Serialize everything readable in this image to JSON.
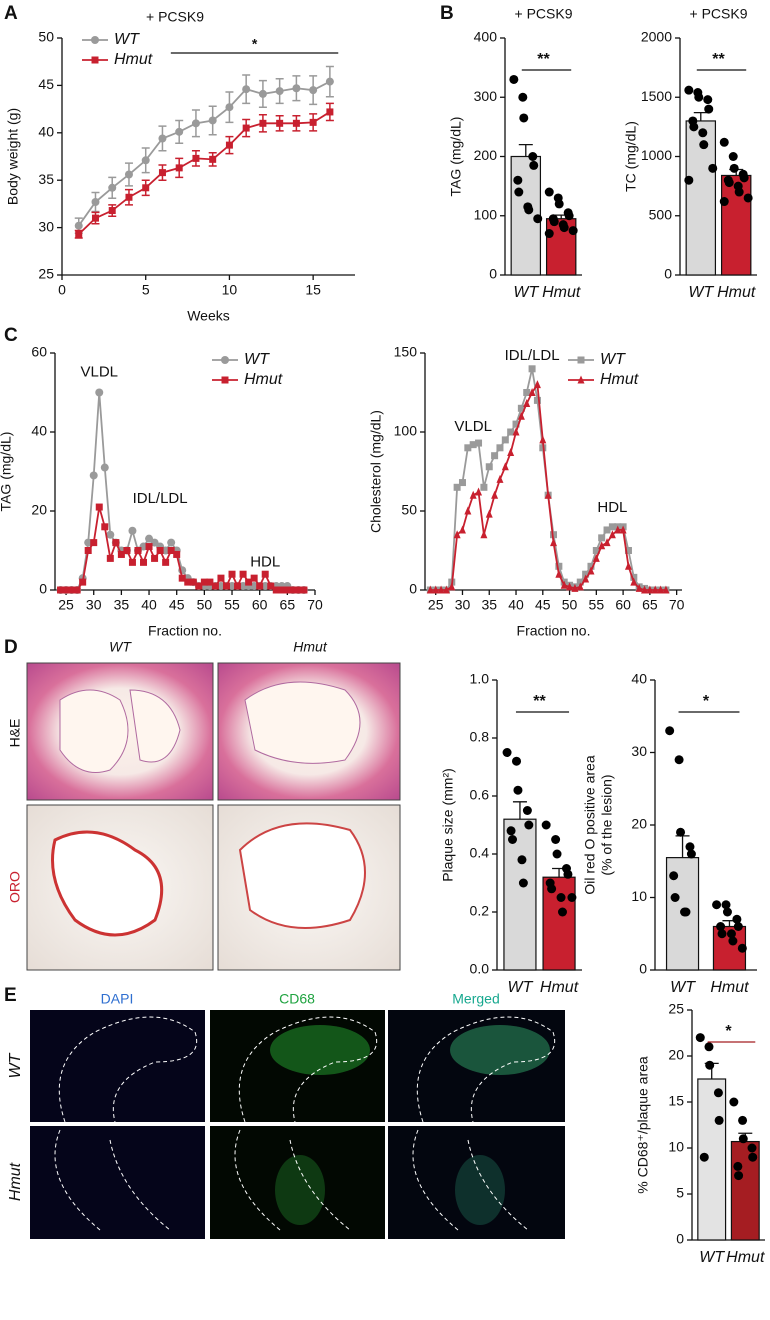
{
  "panel_labels": [
    "A",
    "B",
    "C",
    "D",
    "E"
  ],
  "images": {
    "d_columns": [
      "WT",
      "Hmut"
    ],
    "d_rows": [
      "H&E",
      "ORO"
    ],
    "e_columns": [
      "DAPI",
      "CD68",
      "Merged"
    ],
    "e_rows": [
      "WT",
      "Hmut"
    ]
  },
  "chart_data": [
    {
      "type": "line",
      "title": "+ PCSK9",
      "xlabel": "Weeks",
      "ylabel": "Body weight (g)",
      "significance": "*",
      "x": [
        1,
        2,
        3,
        4,
        5,
        6,
        7,
        8,
        9,
        10,
        11,
        12,
        13,
        14,
        15,
        16
      ],
      "xlim": [
        0,
        17.5
      ],
      "xticks": [
        0,
        5,
        10,
        15
      ],
      "ylim": [
        25,
        50
      ],
      "yticks": [
        25,
        30,
        35,
        40,
        45,
        50
      ],
      "series": [
        {
          "name": "WT",
          "color": "#9a9a9a",
          "marker": "circle",
          "values": [
            30.2,
            32.7,
            34.2,
            35.6,
            37.1,
            39.4,
            40.1,
            41.0,
            41.3,
            42.7,
            44.6,
            44.1,
            44.4,
            44.7,
            44.5,
            45.4
          ],
          "errors": [
            0.8,
            1.0,
            1.1,
            1.2,
            1.3,
            1.3,
            1.2,
            1.4,
            1.5,
            1.6,
            1.5,
            1.4,
            1.3,
            1.3,
            1.5,
            1.6
          ]
        },
        {
          "name": "Hmut",
          "color": "#c8202f",
          "marker": "square",
          "values": [
            29.3,
            31.0,
            31.8,
            33.2,
            34.2,
            35.8,
            36.3,
            37.3,
            37.2,
            38.7,
            40.5,
            41.0,
            41.0,
            41.0,
            41.1,
            42.2
          ],
          "errors": [
            0.4,
            0.6,
            0.6,
            0.8,
            0.8,
            0.8,
            1.0,
            0.8,
            0.7,
            0.9,
            0.9,
            0.9,
            0.8,
            0.8,
            0.9,
            0.9
          ]
        }
      ]
    },
    {
      "type": "bar",
      "title": "+ PCSK9",
      "ylabel": "TAG (mg/dL)",
      "significance": "**",
      "categories": [
        "WT",
        "Hmut"
      ],
      "values": [
        200,
        95
      ],
      "errors": [
        20,
        6
      ],
      "colors": [
        "#d9d9d9",
        "#c8202f"
      ],
      "points": [
        [
          330,
          300,
          265,
          200,
          185,
          160,
          140,
          115,
          110,
          95
        ],
        [
          140,
          130,
          120,
          105,
          100,
          95,
          90,
          85,
          80,
          75,
          70
        ]
      ],
      "ylim": [
        0,
        400
      ],
      "yticks": [
        0,
        100,
        200,
        300,
        400
      ]
    },
    {
      "type": "bar",
      "title": "+ PCSK9",
      "ylabel": "TC (mg/dL)",
      "significance": "**",
      "categories": [
        "WT",
        "Hmut"
      ],
      "values": [
        1300,
        840
      ],
      "errors": [
        70,
        50
      ],
      "colors": [
        "#d9d9d9",
        "#c8202f"
      ],
      "points": [
        [
          1560,
          1540,
          1500,
          1480,
          1400,
          1300,
          1250,
          1200,
          1100,
          900,
          800
        ],
        [
          1120,
          1000,
          900,
          850,
          820,
          800,
          780,
          750,
          700,
          650,
          620
        ]
      ],
      "ylim": [
        0,
        2000
      ],
      "yticks": [
        0,
        500,
        1000,
        1500,
        2000
      ]
    },
    {
      "type": "line",
      "xlabel": "Fraction no.",
      "ylabel": "TAG (mg/dL)",
      "annotations": [
        "VLDL",
        "IDL/LDL",
        "HDL"
      ],
      "x": [
        24,
        25,
        26,
        27,
        28,
        29,
        30,
        31,
        32,
        33,
        34,
        35,
        36,
        37,
        38,
        39,
        40,
        41,
        42,
        43,
        44,
        45,
        46,
        47,
        48,
        49,
        50,
        51,
        52,
        53,
        54,
        55,
        56,
        57,
        58,
        59,
        60,
        61,
        62,
        63,
        64,
        65,
        66,
        67,
        68
      ],
      "xlim": [
        23,
        70
      ],
      "xticks": [
        25,
        30,
        35,
        40,
        45,
        50,
        55,
        60,
        65,
        70
      ],
      "ylim": [
        0,
        60
      ],
      "yticks": [
        0,
        20,
        40,
        60
      ],
      "series": [
        {
          "name": "WT",
          "color": "#9a9a9a",
          "marker": "circle",
          "values": [
            0,
            0,
            0,
            0,
            3,
            12,
            29,
            50,
            31,
            14,
            12,
            10,
            10,
            15,
            10,
            11,
            13,
            12,
            11,
            10,
            12,
            10,
            5,
            3,
            2,
            1,
            1,
            1,
            1,
            1,
            1,
            1,
            1,
            1,
            1,
            1,
            1,
            1,
            1,
            1,
            1,
            1,
            0,
            0,
            0
          ]
        },
        {
          "name": "Hmut",
          "color": "#c8202f",
          "marker": "square",
          "values": [
            0,
            0,
            0,
            0,
            2,
            10,
            12,
            21,
            16,
            8,
            12,
            9,
            10,
            7,
            10,
            7,
            11,
            8,
            10,
            7,
            10,
            9,
            3,
            2,
            2,
            1,
            2,
            2,
            1,
            3,
            1,
            4,
            1,
            4,
            2,
            3,
            1,
            4,
            1,
            0,
            0,
            0,
            0,
            0,
            0
          ]
        }
      ]
    },
    {
      "type": "line",
      "xlabel": "Fraction no.",
      "ylabel": "Cholesterol (mg/dL)",
      "annotations": [
        "VLDL",
        "IDL/LDL",
        "HDL"
      ],
      "x": [
        24,
        25,
        26,
        27,
        28,
        29,
        30,
        31,
        32,
        33,
        34,
        35,
        36,
        37,
        38,
        39,
        40,
        41,
        42,
        43,
        44,
        45,
        46,
        47,
        48,
        49,
        50,
        51,
        52,
        53,
        54,
        55,
        56,
        57,
        58,
        59,
        60,
        61,
        62,
        63,
        64,
        65,
        66,
        67,
        68
      ],
      "xlim": [
        23,
        71
      ],
      "xticks": [
        25,
        30,
        35,
        40,
        45,
        50,
        55,
        60,
        65,
        70
      ],
      "ylim": [
        0,
        150
      ],
      "yticks": [
        0,
        50,
        100,
        150
      ],
      "series": [
        {
          "name": "WT",
          "color": "#9a9a9a",
          "marker": "square",
          "values": [
            0,
            0,
            0,
            0,
            5,
            65,
            68,
            90,
            92,
            93,
            65,
            78,
            85,
            90,
            95,
            100,
            105,
            115,
            125,
            140,
            120,
            90,
            60,
            35,
            15,
            5,
            3,
            2,
            5,
            10,
            15,
            25,
            33,
            38,
            40,
            40,
            40,
            25,
            8,
            2,
            1,
            0,
            0,
            0,
            0
          ]
        },
        {
          "name": "Hmut",
          "color": "#c8202f",
          "marker": "triangle",
          "values": [
            0,
            0,
            0,
            0,
            2,
            35,
            38,
            50,
            60,
            62,
            35,
            48,
            60,
            70,
            78,
            87,
            100,
            110,
            118,
            125,
            130,
            95,
            60,
            30,
            10,
            3,
            2,
            1,
            2,
            7,
            12,
            20,
            28,
            30,
            35,
            38,
            38,
            15,
            5,
            1,
            0,
            0,
            0,
            0,
            0
          ]
        }
      ]
    },
    {
      "type": "bar",
      "ylabel": "Plaque size (mm²)",
      "significance": "**",
      "categories": [
        "WT",
        "Hmut"
      ],
      "values": [
        0.52,
        0.32
      ],
      "errors": [
        0.06,
        0.03
      ],
      "colors": [
        "#d9d9d9",
        "#c8202f"
      ],
      "points": [
        [
          0.75,
          0.72,
          0.62,
          0.55,
          0.5,
          0.48,
          0.45,
          0.38,
          0.3
        ],
        [
          0.5,
          0.45,
          0.4,
          0.35,
          0.33,
          0.3,
          0.28,
          0.25,
          0.2,
          0.25
        ]
      ],
      "ylim": [
        0,
        1
      ],
      "yticks": [
        {
          "value": 0,
          "label": "0.0"
        },
        0.2,
        0.4,
        0.6,
        0.8,
        {
          "value": 1,
          "label": "1.0"
        }
      ]
    },
    {
      "type": "bar",
      "ylabel": [
        "Oil red O positive area",
        "(% of the lesion)"
      ],
      "significance": "*",
      "categories": [
        "WT",
        "Hmut"
      ],
      "values": [
        15.5,
        6
      ],
      "errors": [
        3,
        0.8
      ],
      "colors": [
        "#d9d9d9",
        "#c8202f"
      ],
      "points": [
        [
          33,
          29,
          19,
          17,
          16,
          13,
          10,
          8,
          8
        ],
        [
          9,
          9,
          8,
          7,
          6,
          6,
          5,
          5,
          4,
          3
        ]
      ],
      "ylim": [
        0,
        40
      ],
      "yticks": [
        0,
        10,
        20,
        30,
        40
      ]
    },
    {
      "type": "bar",
      "ylabel": "% CD68⁺/plaque area",
      "significance": "*",
      "categories": [
        "WT",
        "Hmut"
      ],
      "values": [
        17.5,
        10.7
      ],
      "errors": [
        1.7,
        0.9
      ],
      "colors": [
        "#e3e3e3",
        "#a51d22"
      ],
      "points": [
        [
          22,
          21,
          19,
          16,
          13,
          9
        ],
        [
          15,
          13,
          11,
          10,
          9,
          8,
          7
        ]
      ],
      "ylim": [
        0,
        25
      ],
      "yticks": [
        0,
        5,
        10,
        15,
        20,
        25
      ]
    }
  ]
}
